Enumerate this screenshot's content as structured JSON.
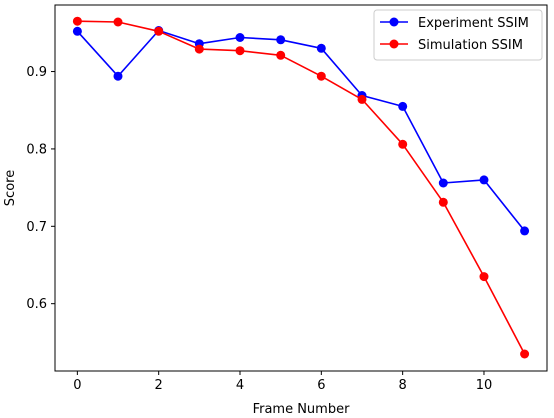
{
  "chart_data": {
    "type": "line",
    "title": "",
    "xlabel": "Frame Number",
    "ylabel": "Score",
    "xlim": [
      -0.55,
      11.55
    ],
    "ylim": [
      0.513,
      0.986
    ],
    "xticks": [
      0,
      2,
      4,
      6,
      8,
      10
    ],
    "yticks": [
      0.6,
      0.7,
      0.8,
      0.9
    ],
    "grid": false,
    "legend_position": "top-right",
    "x": [
      0,
      1,
      2,
      3,
      4,
      5,
      6,
      7,
      8,
      9,
      10,
      11
    ],
    "series": [
      {
        "name": "Experiment SSIM",
        "color": "#0000ff",
        "marker": "circle",
        "values": [
          0.952,
          0.894,
          0.953,
          0.936,
          0.944,
          0.941,
          0.93,
          0.869,
          0.855,
          0.756,
          0.76,
          0.694
        ]
      },
      {
        "name": "Simulation SSIM",
        "color": "#ff0000",
        "marker": "circle",
        "values": [
          0.965,
          0.964,
          0.952,
          0.929,
          0.927,
          0.921,
          0.894,
          0.864,
          0.806,
          0.731,
          0.635,
          0.535
        ]
      }
    ]
  }
}
